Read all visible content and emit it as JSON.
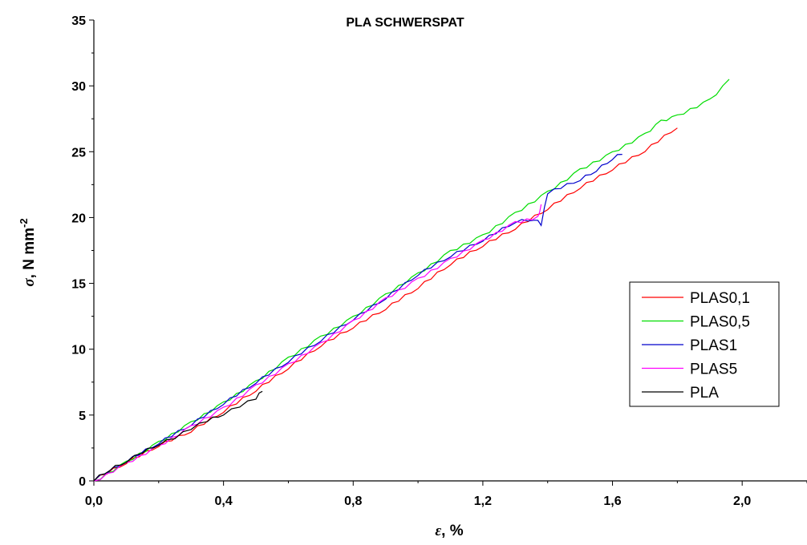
{
  "chart_data": {
    "type": "line",
    "title": "PLA SCHWERSPAT",
    "xlabel": {
      "symbol": "ε",
      "rest": ", %"
    },
    "ylabel": {
      "symbol": "σ",
      "rest": ", N mm",
      "sup": "-2"
    },
    "xlim": [
      0,
      2.2
    ],
    "ylim": [
      0,
      35
    ],
    "x_ticks": [
      0,
      0.4,
      0.8,
      1.2,
      1.6,
      2.0
    ],
    "x_tick_labels": [
      "0,0",
      "0,4",
      "0,8",
      "1,2",
      "1,6",
      "2,0"
    ],
    "y_ticks": [
      0,
      5,
      10,
      15,
      20,
      25,
      30,
      35
    ],
    "y_tick_labels": [
      "0",
      "5",
      "10",
      "15",
      "20",
      "25",
      "30",
      "35"
    ],
    "grid": false,
    "legend_position": "right",
    "series": [
      {
        "name": "PLAS0,1",
        "color": "#ff0000",
        "points": [
          [
            0,
            0
          ],
          [
            0.1,
            1.3
          ],
          [
            0.2,
            2.6
          ],
          [
            0.3,
            3.7
          ],
          [
            0.4,
            5.2
          ],
          [
            0.5,
            6.8
          ],
          [
            0.6,
            8.5
          ],
          [
            0.7,
            10.2
          ],
          [
            0.8,
            11.6
          ],
          [
            0.9,
            13.0
          ],
          [
            1.0,
            14.6
          ],
          [
            1.1,
            16.4
          ],
          [
            1.2,
            17.8
          ],
          [
            1.3,
            19.1
          ],
          [
            1.4,
            20.6
          ],
          [
            1.5,
            22.2
          ],
          [
            1.6,
            23.6
          ],
          [
            1.7,
            25.0
          ],
          [
            1.8,
            26.8
          ]
        ]
      },
      {
        "name": "PLAS0,5",
        "color": "#00dd00",
        "points": [
          [
            0,
            0
          ],
          [
            0.1,
            1.5
          ],
          [
            0.2,
            3.0
          ],
          [
            0.3,
            4.5
          ],
          [
            0.4,
            6.0
          ],
          [
            0.5,
            7.6
          ],
          [
            0.6,
            9.4
          ],
          [
            0.7,
            11.0
          ],
          [
            0.8,
            12.5
          ],
          [
            0.9,
            14.2
          ],
          [
            1.0,
            15.8
          ],
          [
            1.1,
            17.5
          ],
          [
            1.2,
            18.7
          ],
          [
            1.3,
            20.4
          ],
          [
            1.4,
            22.0
          ],
          [
            1.5,
            23.7
          ],
          [
            1.6,
            25.0
          ],
          [
            1.7,
            26.4
          ],
          [
            1.75,
            27.4
          ],
          [
            1.8,
            27.8
          ],
          [
            1.9,
            29.0
          ],
          [
            1.96,
            30.5
          ]
        ]
      },
      {
        "name": "PLAS1",
        "color": "#0000cc",
        "points": [
          [
            0,
            0
          ],
          [
            0.1,
            1.4
          ],
          [
            0.2,
            2.8
          ],
          [
            0.3,
            4.2
          ],
          [
            0.4,
            5.8
          ],
          [
            0.5,
            7.4
          ],
          [
            0.6,
            9.0
          ],
          [
            0.7,
            10.6
          ],
          [
            0.8,
            12.2
          ],
          [
            0.9,
            13.8
          ],
          [
            1.0,
            15.6
          ],
          [
            1.1,
            17.0
          ],
          [
            1.2,
            18.2
          ],
          [
            1.3,
            19.6
          ],
          [
            1.36,
            19.8
          ],
          [
            1.38,
            19.4
          ],
          [
            1.4,
            21.8
          ],
          [
            1.5,
            22.8
          ],
          [
            1.55,
            23.5
          ],
          [
            1.6,
            24.4
          ],
          [
            1.63,
            24.8
          ]
        ]
      },
      {
        "name": "PLAS5",
        "color": "#ff00ff",
        "points": [
          [
            0,
            0
          ],
          [
            0.1,
            1.4
          ],
          [
            0.2,
            2.7
          ],
          [
            0.3,
            4.2
          ],
          [
            0.4,
            5.6
          ],
          [
            0.5,
            7.3
          ],
          [
            0.6,
            8.9
          ],
          [
            0.7,
            10.5
          ],
          [
            0.8,
            12.2
          ],
          [
            0.9,
            13.9
          ],
          [
            1.0,
            15.4
          ],
          [
            1.1,
            16.9
          ],
          [
            1.2,
            18.3
          ],
          [
            1.3,
            19.7
          ],
          [
            1.37,
            20.1
          ],
          [
            1.38,
            21.0
          ]
        ]
      },
      {
        "name": "PLA",
        "color": "#000000",
        "points": [
          [
            0,
            0
          ],
          [
            0.05,
            0.8
          ],
          [
            0.1,
            1.4
          ],
          [
            0.15,
            2.1
          ],
          [
            0.2,
            2.7
          ],
          [
            0.25,
            3.2
          ],
          [
            0.3,
            3.9
          ],
          [
            0.35,
            4.5
          ],
          [
            0.4,
            5.0
          ],
          [
            0.45,
            5.6
          ],
          [
            0.5,
            6.2
          ],
          [
            0.52,
            6.8
          ]
        ]
      }
    ]
  }
}
